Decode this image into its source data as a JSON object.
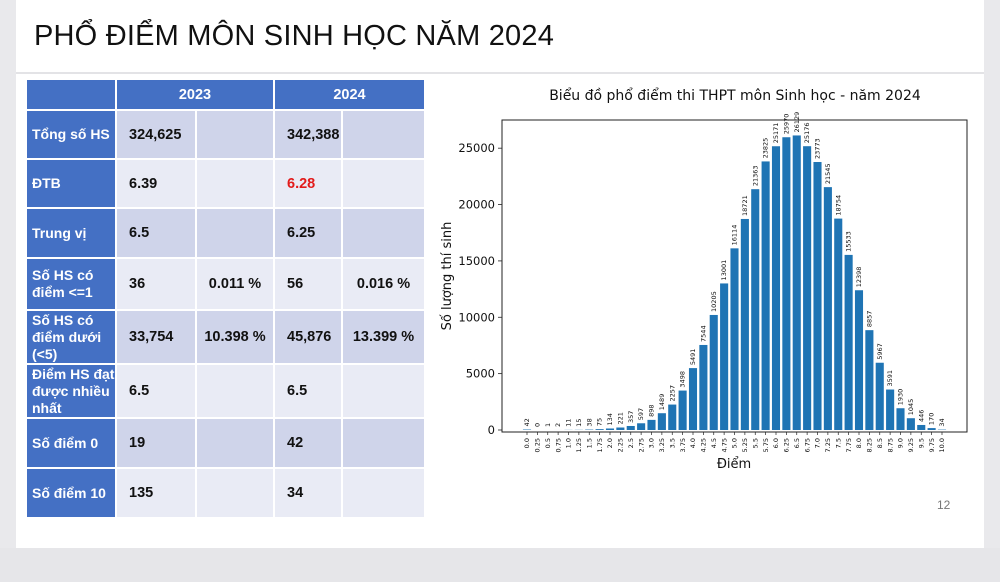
{
  "title": "PHỔ ĐIỂM MÔN SINH HỌC NĂM 2024",
  "page_number": "12",
  "table": {
    "years": [
      "2023",
      "2024"
    ],
    "rows": [
      {
        "label": "Tổng số HS",
        "v2023": "324,625",
        "p2023": "",
        "v2024": "342,388",
        "p2024": ""
      },
      {
        "label": "ĐTB",
        "v2023": "6.39",
        "p2023": "",
        "v2024": "6.28",
        "p2024": ""
      },
      {
        "label": "Trung vị",
        "v2023": "6.5",
        "p2023": "",
        "v2024": "6.25",
        "p2024": ""
      },
      {
        "label": "Số HS có điểm <=1",
        "v2023": "36",
        "p2023": "0.011 %",
        "v2024": "56",
        "p2024": "0.016 %"
      },
      {
        "label": "Số HS có điểm dưới (<5)",
        "v2023": "33,754",
        "p2023": "10.398 %",
        "v2024": "45,876",
        "p2024": "13.399 %"
      },
      {
        "label": "Điểm HS đạt được nhiều nhất",
        "v2023": "6.5",
        "p2023": "",
        "v2024": "6.5",
        "p2024": ""
      },
      {
        "label": "Số điểm 0",
        "v2023": "19",
        "p2023": "",
        "v2024": "42",
        "p2024": ""
      },
      {
        "label": "Số điểm 10",
        "v2023": "135",
        "p2023": "",
        "v2024": "34",
        "p2024": ""
      }
    ],
    "highlight_color": "#e21b1b"
  },
  "chart_data": {
    "type": "bar",
    "title": "Biểu đồ phổ điểm thi THPT môn Sinh học - năm 2024",
    "xlabel": "Điểm",
    "ylabel": "Số lượng thí sinh",
    "categories": [
      "0.0",
      "0.25",
      "0.5",
      "0.75",
      "1.0",
      "1.25",
      "1.5",
      "1.75",
      "2.0",
      "2.25",
      "2.5",
      "2.75",
      "3.0",
      "3.25",
      "3.5",
      "3.75",
      "4.0",
      "4.25",
      "4.5",
      "4.75",
      "5.0",
      "5.25",
      "5.5",
      "5.75",
      "6.0",
      "6.25",
      "6.5",
      "6.75",
      "7.0",
      "7.25",
      "7.5",
      "7.75",
      "8.0",
      "8.25",
      "8.5",
      "8.75",
      "9.0",
      "9.25",
      "9.5",
      "9.75",
      "10.0"
    ],
    "values": [
      42,
      0,
      1,
      2,
      11,
      15,
      38,
      75,
      134,
      221,
      357,
      597,
      898,
      1489,
      2257,
      3498,
      5491,
      7544,
      10205,
      13001,
      16114,
      18721,
      21363,
      23825,
      25171,
      25970,
      26129,
      25176,
      23773,
      21545,
      18754,
      15533,
      12398,
      8857,
      5967,
      3591,
      1930,
      1045,
      446,
      170,
      34
    ],
    "yticks": [
      0,
      5000,
      10000,
      15000,
      20000,
      25000
    ],
    "ylim": [
      0,
      27500
    ],
    "color": "#1f74b4",
    "grid": false
  }
}
